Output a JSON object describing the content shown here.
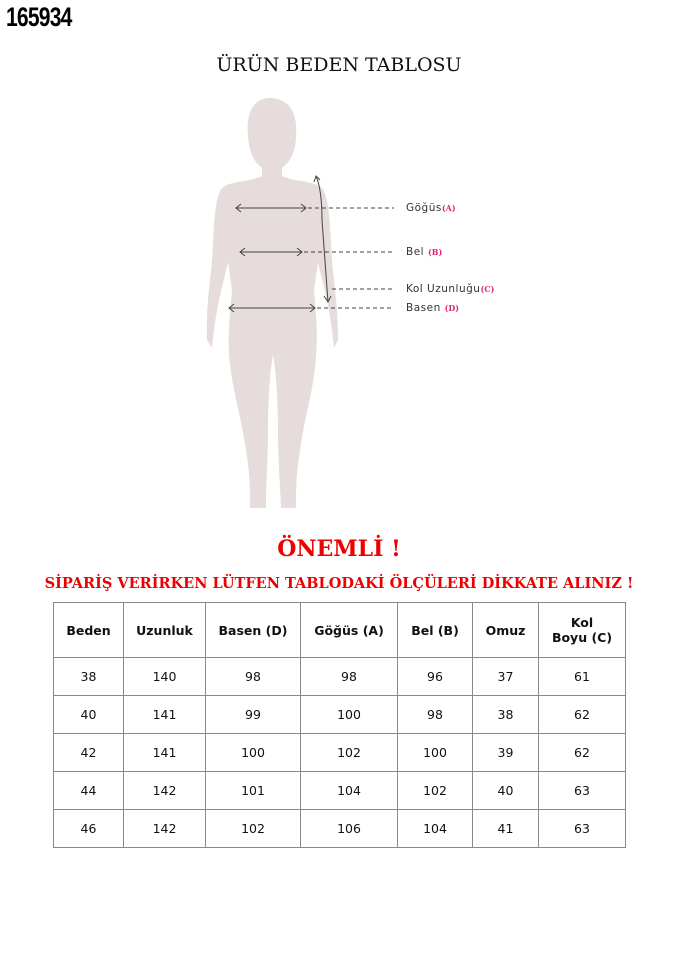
{
  "product_code": "165934",
  "title": "ÜRÜN BEDEN TABLOSU",
  "figure": {
    "body_color": "#e6dcdc",
    "labels": [
      {
        "name": "Göğüs",
        "code": "(A)"
      },
      {
        "name": "Bel",
        "code": "(B)"
      },
      {
        "name": "Kol Uzunluğu",
        "code": "(C)"
      },
      {
        "name": "Basen",
        "code": "(D)"
      }
    ]
  },
  "important": "ÖNEMLİ !",
  "warning": "SİPARİŞ VERİRKEN LÜTFEN TABLODAKİ ÖLÇÜLERİ DİKKATE ALINIZ !",
  "table": {
    "headers": [
      "Beden",
      "Uzunluk",
      "Basen (D)",
      "Göğüs (A)",
      "Bel (B)",
      "Omuz",
      "Kol\nBoyu (C)"
    ],
    "rows": [
      [
        "38",
        "140",
        "98",
        "98",
        "96",
        "37",
        "61"
      ],
      [
        "40",
        "141",
        "99",
        "100",
        "98",
        "38",
        "62"
      ],
      [
        "42",
        "141",
        "100",
        "102",
        "100",
        "39",
        "62"
      ],
      [
        "44",
        "142",
        "101",
        "104",
        "102",
        "40",
        "63"
      ],
      [
        "46",
        "142",
        "102",
        "106",
        "104",
        "41",
        "63"
      ]
    ]
  }
}
